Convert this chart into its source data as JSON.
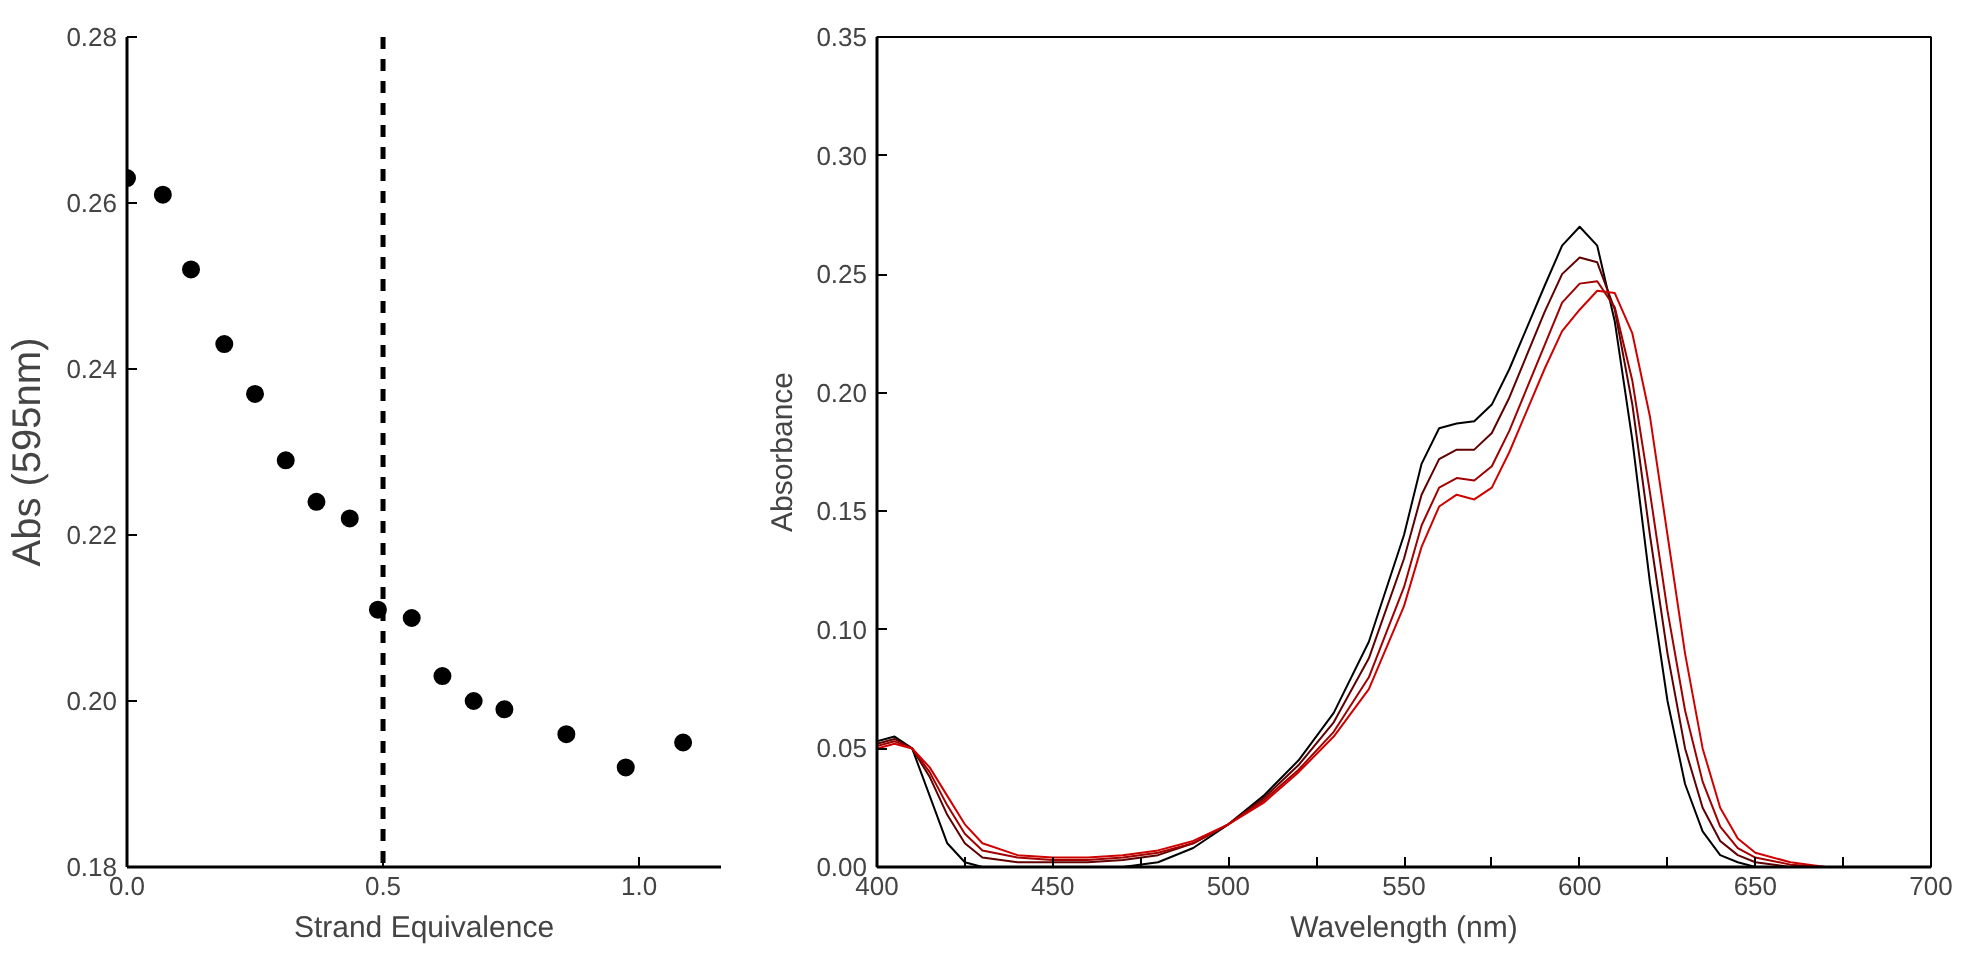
{
  "chart_data": [
    {
      "type": "scatter",
      "xlabel": "Strand Equivalence",
      "ylabel": "Abs (595nm)",
      "marker": "circle",
      "grid": false,
      "color": "#000000",
      "x": [
        0.0,
        0.07,
        0.125,
        0.19,
        0.25,
        0.31,
        0.37,
        0.435,
        0.49,
        0.556,
        0.616,
        0.677,
        0.737,
        0.858,
        0.974,
        1.086
      ],
      "values": [
        0.263,
        0.261,
        0.252,
        0.243,
        0.237,
        0.229,
        0.224,
        0.222,
        0.211,
        0.21,
        0.203,
        0.2,
        0.199,
        0.196,
        0.192,
        0.195
      ],
      "xlim": [
        0,
        1.16
      ],
      "ylim": [
        0.18,
        0.28
      ],
      "xticks": [
        {
          "value": 0,
          "label": "0.0"
        },
        {
          "value": 0.5,
          "label": "0.5"
        },
        {
          "value": 1,
          "label": "1.0"
        }
      ],
      "yticks": [
        {
          "value": 0.18,
          "label": "0.18"
        },
        {
          "value": 0.2,
          "label": "0.20"
        },
        {
          "value": 0.22,
          "label": "0.22"
        },
        {
          "value": 0.24,
          "label": "0.24"
        },
        {
          "value": 0.26,
          "label": "0.26"
        },
        {
          "value": 0.28,
          "label": "0.28"
        }
      ],
      "ref_lines": [
        {
          "axis": "x",
          "value": 0.5,
          "label": null,
          "color": "#000000",
          "line_style": "dashed"
        }
      ]
    },
    {
      "type": "line",
      "xlabel": "Wavelength (nm)",
      "ylabel": "Absorbance",
      "grid": false,
      "line_style": "solid",
      "x": [
        400,
        405,
        410,
        415,
        420,
        425,
        430,
        440,
        450,
        460,
        470,
        480,
        490,
        500,
        510,
        520,
        530,
        540,
        550,
        555,
        560,
        565,
        570,
        575,
        580,
        590,
        595,
        600,
        605,
        610,
        615,
        620,
        625,
        630,
        635,
        640,
        645,
        650,
        660,
        670,
        700
      ],
      "series": [
        {
          "color": "#000000",
          "values": [
            0.053,
            0.055,
            0.05,
            0.03,
            0.01,
            0.002,
            0,
            0,
            0,
            0,
            0,
            0.002,
            0.008,
            0.018,
            0.03,
            0.045,
            0.065,
            0.095,
            0.14,
            0.17,
            0.185,
            0.187,
            0.188,
            0.195,
            0.21,
            0.245,
            0.262,
            0.27,
            0.262,
            0.23,
            0.18,
            0.12,
            0.07,
            0.035,
            0.015,
            0.005,
            0.002,
            0,
            0,
            0,
            0
          ]
        },
        {
          "color": "#600000",
          "values": [
            0.052,
            0.054,
            0.05,
            0.038,
            0.022,
            0.01,
            0.004,
            0.002,
            0.002,
            0.002,
            0.003,
            0.005,
            0.01,
            0.018,
            0.029,
            0.043,
            0.061,
            0.088,
            0.13,
            0.157,
            0.172,
            0.176,
            0.176,
            0.183,
            0.198,
            0.234,
            0.25,
            0.257,
            0.255,
            0.235,
            0.195,
            0.14,
            0.09,
            0.05,
            0.025,
            0.011,
            0.005,
            0.002,
            0,
            0,
            0
          ]
        },
        {
          "color": "#a00000",
          "values": [
            0.051,
            0.053,
            0.05,
            0.04,
            0.026,
            0.014,
            0.007,
            0.004,
            0.003,
            0.003,
            0.004,
            0.006,
            0.01,
            0.018,
            0.028,
            0.041,
            0.057,
            0.08,
            0.118,
            0.144,
            0.16,
            0.164,
            0.163,
            0.169,
            0.184,
            0.22,
            0.238,
            0.246,
            0.247,
            0.236,
            0.205,
            0.158,
            0.108,
            0.066,
            0.036,
            0.017,
            0.008,
            0.004,
            0.001,
            0,
            0
          ]
        },
        {
          "color": "#d00000",
          "values": [
            0.05,
            0.052,
            0.05,
            0.042,
            0.03,
            0.018,
            0.01,
            0.005,
            0.004,
            0.004,
            0.005,
            0.007,
            0.011,
            0.018,
            0.027,
            0.04,
            0.055,
            0.075,
            0.11,
            0.135,
            0.152,
            0.157,
            0.155,
            0.16,
            0.175,
            0.21,
            0.226,
            0.235,
            0.243,
            0.242,
            0.225,
            0.19,
            0.14,
            0.09,
            0.05,
            0.025,
            0.012,
            0.006,
            0.002,
            0,
            0
          ]
        }
      ],
      "xlim": [
        400,
        700
      ],
      "ylim": [
        0,
        0.35
      ],
      "xticks": [
        400,
        {
          "value": 425,
          "label": null
        },
        450,
        {
          "value": 475,
          "label": null
        },
        500,
        {
          "value": 525,
          "label": null
        },
        550,
        {
          "value": 575,
          "label": null
        },
        600,
        {
          "value": 625,
          "label": null
        },
        650,
        {
          "value": 675,
          "label": null
        },
        700
      ],
      "yticks": [
        {
          "value": 0,
          "label": "0.00"
        },
        {
          "value": 0.05,
          "label": "0.05"
        },
        {
          "value": 0.1,
          "label": "0.10"
        },
        {
          "value": 0.15,
          "label": "0.15"
        },
        {
          "value": 0.2,
          "label": "0.20"
        },
        {
          "value": 0.25,
          "label": "0.25"
        },
        {
          "value": 0.3,
          "label": "0.30"
        },
        {
          "value": 0.35,
          "label": "0.35"
        }
      ]
    }
  ]
}
